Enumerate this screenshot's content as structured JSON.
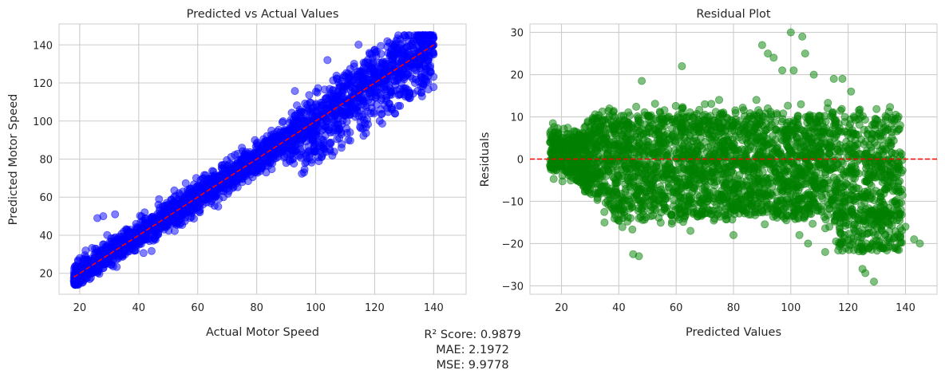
{
  "chart_data": [
    {
      "type": "scatter",
      "title": "Predicted vs Actual Values",
      "xlabel": "Actual Motor Speed",
      "ylabel": "Predicted Motor Speed",
      "xlim": [
        13,
        151
      ],
      "ylim": [
        9,
        151
      ],
      "xticks": [
        20,
        40,
        60,
        80,
        100,
        120,
        140
      ],
      "yticks": [
        20,
        40,
        60,
        80,
        100,
        120,
        140
      ],
      "grid": true,
      "point_color": "#0000ff",
      "reference_line": {
        "style": "dashed",
        "color": "#ff0000",
        "x": [
          18,
          141
        ],
        "y": [
          18,
          141
        ]
      },
      "series": [
        {
          "values_sample": [
            [
              18,
              16
            ],
            [
              19,
              22
            ],
            [
              20,
              28
            ],
            [
              22,
              32
            ],
            [
              25,
              30
            ],
            [
              26,
              49
            ],
            [
              28,
              50
            ],
            [
              30,
              27
            ],
            [
              32,
              51
            ],
            [
              35,
              42
            ],
            [
              40,
              40
            ],
            [
              42,
              52
            ],
            [
              45,
              44
            ],
            [
              50,
              56
            ],
            [
              52,
              60
            ],
            [
              55,
              51
            ],
            [
              60,
              66
            ],
            [
              62,
              70
            ],
            [
              65,
              61
            ],
            [
              70,
              74
            ],
            [
              75,
              86
            ],
            [
              78,
              72
            ],
            [
              80,
              88
            ],
            [
              85,
              95
            ],
            [
              88,
              92
            ],
            [
              90,
              78
            ],
            [
              95,
              105
            ],
            [
              98,
              98
            ],
            [
              100,
              84
            ],
            [
              104,
              132
            ],
            [
              105,
              94
            ],
            [
              108,
              91
            ],
            [
              110,
              103
            ],
            [
              112,
              118
            ],
            [
              116,
              96
            ],
            [
              120,
              116
            ],
            [
              122,
              128
            ],
            [
              125,
              141
            ],
            [
              128,
              108
            ],
            [
              130,
              122
            ],
            [
              133,
              142
            ],
            [
              135,
              139
            ],
            [
              138,
              132
            ],
            [
              140,
              135
            ]
          ]
        }
      ]
    },
    {
      "type": "scatter",
      "title": "Residual Plot",
      "xlabel": "Predicted Values",
      "ylabel": "Residuals",
      "xlim": [
        9,
        151
      ],
      "ylim": [
        -32,
        32
      ],
      "xticks": [
        20,
        40,
        60,
        80,
        100,
        120,
        140
      ],
      "yticks": [
        -30,
        -20,
        -10,
        0,
        10,
        20,
        30
      ],
      "ytick_labels": [
        "−30",
        "−20",
        "−10",
        "0",
        "10",
        "20",
        "30"
      ],
      "grid": true,
      "point_color": "#008000",
      "reference_line": {
        "style": "dashed",
        "color": "#ff0000",
        "y": 0
      },
      "series": [
        {
          "values_sample": [
            [
              16,
              4
            ],
            [
              17,
              8.5
            ],
            [
              20,
              5
            ],
            [
              25,
              4
            ],
            [
              35,
              -15
            ],
            [
              45,
              -22.5
            ],
            [
              47,
              -23
            ],
            [
              48,
              18.5
            ],
            [
              55,
              10
            ],
            [
              62,
              22
            ],
            [
              65,
              -17
            ],
            [
              70,
              13
            ],
            [
              75,
              14
            ],
            [
              80,
              -18
            ],
            [
              88,
              14
            ],
            [
              90,
              27
            ],
            [
              92,
              25
            ],
            [
              94,
              24
            ],
            [
              97,
              21
            ],
            [
              100,
              30
            ],
            [
              101,
              21
            ],
            [
              103,
              -18
            ],
            [
              104,
              29
            ],
            [
              105,
              25
            ],
            [
              106,
              -20
            ],
            [
              108,
              20
            ],
            [
              112,
              -22
            ],
            [
              115,
              19
            ],
            [
              118,
              19
            ],
            [
              121,
              16
            ],
            [
              125,
              -26
            ],
            [
              126,
              -27
            ],
            [
              129,
              -29
            ],
            [
              132,
              -21
            ],
            [
              135,
              -13
            ],
            [
              137,
              -12
            ],
            [
              140,
              -16
            ],
            [
              143,
              -19
            ],
            [
              145,
              -20
            ]
          ]
        }
      ]
    }
  ],
  "metrics": {
    "r2_label": "R² Score: 0.9879",
    "mae_label": "MAE: 2.1972",
    "mse_label": "MSE: 9.9778"
  }
}
